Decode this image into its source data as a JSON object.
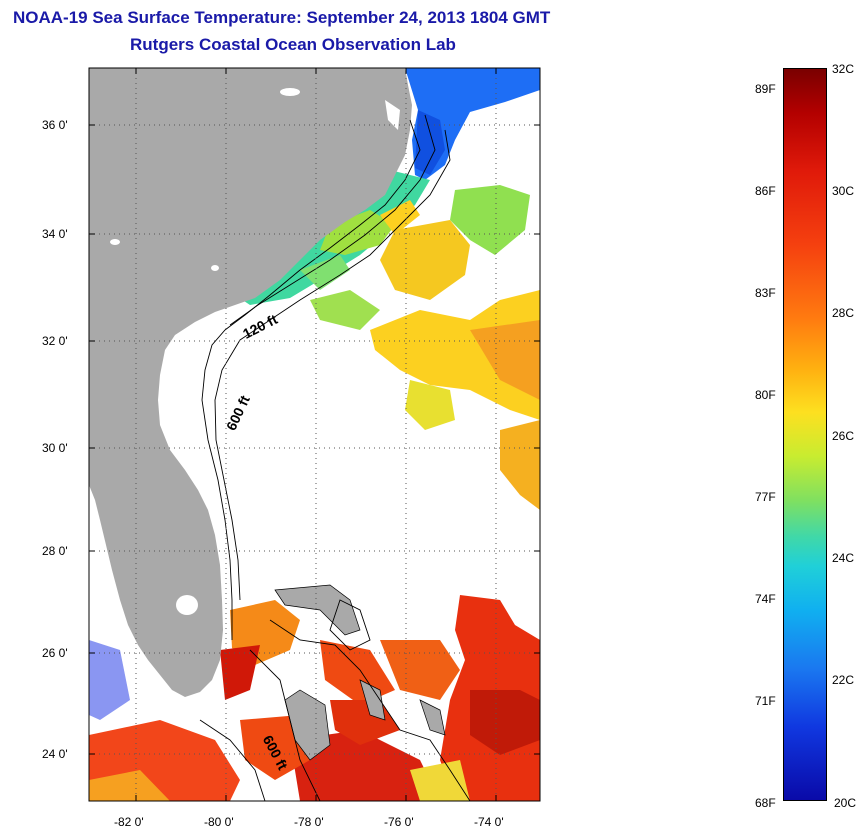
{
  "title": {
    "line1": "NOAA-19 Sea Surface Temperature:  September 24, 2013 1804 GMT",
    "line2": "Rutgers Coastal Ocean Observation Lab"
  },
  "map": {
    "lat_labels": [
      "36 0'",
      "34 0'",
      "32 0'",
      "30 0'",
      "28 0'",
      "26 0'",
      "24 0'"
    ],
    "lon_labels": [
      "-82 0'",
      "-80 0'",
      "-78 0'",
      "-76 0'",
      "-74 0'"
    ],
    "contour_labels": [
      "120 ft",
      "600 ft",
      "600 ft"
    ],
    "colors": {
      "land": "#a9a9a9",
      "no_data": "#ffffff"
    }
  },
  "colorbar": {
    "fahrenheit_labels": [
      "89F",
      "86F",
      "83F",
      "80F",
      "77F",
      "74F",
      "71F",
      "68F"
    ],
    "celsius_labels": [
      "32C",
      "30C",
      "28C",
      "26C",
      "24C",
      "22C",
      "20C"
    ],
    "colors": {
      "max": "#7a0000",
      "warm": "#f5400f",
      "mid": "#fde020",
      "cool": "#20d0d8",
      "min": "#0a0aa8"
    }
  }
}
